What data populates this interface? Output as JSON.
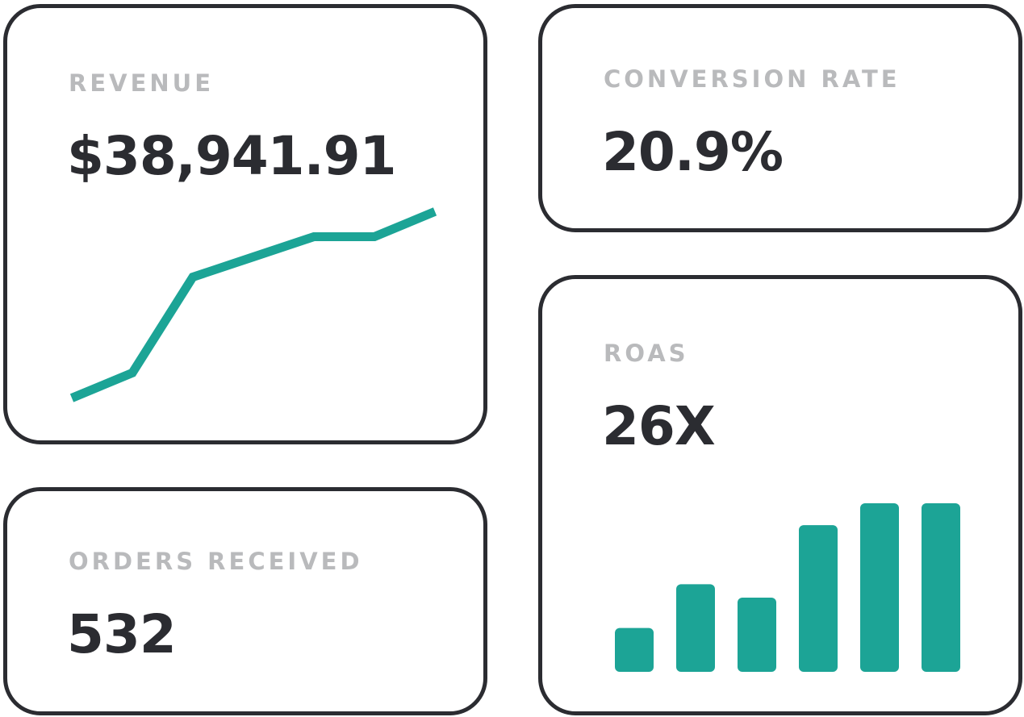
{
  "colors": {
    "accent": "#1ca496",
    "text": "#2b2c31",
    "label": "#b9babc",
    "border": "#2b2c31"
  },
  "cards": {
    "revenue": {
      "label": "REVENUE",
      "value": "$38,941.91"
    },
    "orders": {
      "label": "ORDERS RECEIVED",
      "value": "532"
    },
    "conversion": {
      "label": "CONVERSION RATE",
      "value": "20.9%"
    },
    "roas": {
      "label": "ROAS",
      "value": "26X"
    }
  },
  "chart_data": [
    {
      "type": "line",
      "title": "",
      "xlabel": "",
      "ylabel": "",
      "grid": false,
      "x": [
        1,
        2,
        3,
        4,
        5,
        6,
        7
      ],
      "y": [
        2,
        7,
        26,
        30,
        34,
        34,
        39
      ],
      "ylim": [
        0,
        40
      ]
    },
    {
      "type": "bar",
      "title": "",
      "xlabel": "",
      "ylabel": "",
      "grid": false,
      "categories": [
        "1",
        "2",
        "3",
        "4",
        "5",
        "6"
      ],
      "values": [
        26,
        52,
        44,
        87,
        100,
        100
      ],
      "ylim": [
        0,
        100
      ]
    }
  ]
}
